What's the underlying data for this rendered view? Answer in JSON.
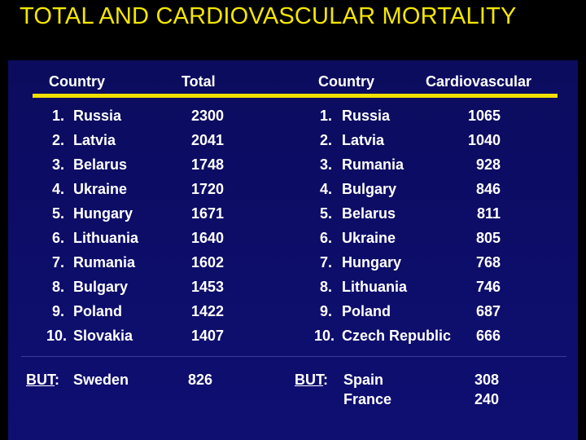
{
  "title": "TOTAL AND CARDIOVASCULAR MORTALITY",
  "headers": {
    "left_country": "Country",
    "total": "Total",
    "right_country": "Country",
    "cardiovascular": "Cardiovascular"
  },
  "left_rows": [
    {
      "rank": "1.",
      "country": "Russia",
      "value": "2300"
    },
    {
      "rank": "2.",
      "country": "Latvia",
      "value": "2041"
    },
    {
      "rank": "3.",
      "country": "Belarus",
      "value": "1748"
    },
    {
      "rank": "4.",
      "country": "Ukraine",
      "value": "1720"
    },
    {
      "rank": "5.",
      "country": "Hungary",
      "value": "1671"
    },
    {
      "rank": "6.",
      "country": "Lithuania",
      "value": "1640"
    },
    {
      "rank": "7.",
      "country": "Rumania",
      "value": "1602"
    },
    {
      "rank": "8.",
      "country": "Bulgary",
      "value": "1453"
    },
    {
      "rank": "9.",
      "country": "Poland",
      "value": "1422"
    },
    {
      "rank": "10.",
      "country": "Slovakia",
      "value": "1407"
    }
  ],
  "right_rows": [
    {
      "rank": "1.",
      "country": "Russia",
      "value": "1065"
    },
    {
      "rank": "2.",
      "country": "Latvia",
      "value": "1040"
    },
    {
      "rank": "3.",
      "country": "Rumania",
      "value": "928"
    },
    {
      "rank": "4.",
      "country": "Bulgary",
      "value": "846"
    },
    {
      "rank": "5.",
      "country": "Belarus",
      "value": "811"
    },
    {
      "rank": "6.",
      "country": "Ukraine",
      "value": "805"
    },
    {
      "rank": "7.",
      "country": "Hungary",
      "value": "768"
    },
    {
      "rank": "8.",
      "country": "Lithuania",
      "value": "746"
    },
    {
      "rank": "9.",
      "country": "Poland",
      "value": "687"
    },
    {
      "rank": "10.",
      "country": "Czech Republic",
      "value": "666"
    }
  ],
  "footer_left": {
    "label": "BUT",
    "colon": ":",
    "country": "Sweden",
    "value": "826"
  },
  "footer_right": {
    "label": "BUT",
    "colon": ":",
    "country1": "Spain",
    "value1": "308",
    "country2": "France",
    "value2": "240"
  },
  "colors": {
    "title": "#f5e600",
    "panel": "#0d0d6a",
    "rule": "#f2e000",
    "text": "#ffffff"
  }
}
